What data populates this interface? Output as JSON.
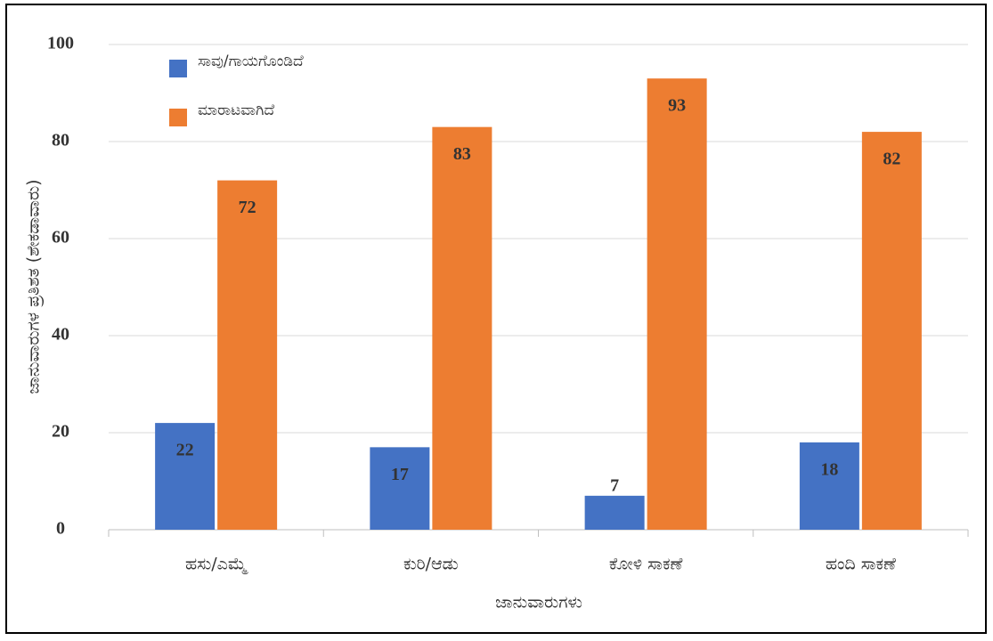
{
  "chart_data": {
    "type": "bar",
    "y_label": "ಜಾನುವಾರುಗಳ ಪ್ರತಿಶತ (ಶೇಕಡಾವಾರು)",
    "x_label": "ಜಾನುವಾರುಗಳು",
    "categories": [
      "ಹಸು/ಎಮ್ಮೆ",
      "ಕುರಿ/ಆಡು",
      "ಕೋಳಿ ಸಾಕಣೆ",
      "ಹಂದಿ ಸಾಕಣೆ"
    ],
    "series": [
      {
        "name": "ಸಾವು/ಗಾಯಗೊಂಡಿದೆ",
        "color": "#4472c4",
        "values": [
          22,
          17,
          7,
          18
        ]
      },
      {
        "name": "ಮಾರಾಟವಾಗಿದೆ",
        "color": "#ed7d31",
        "values": [
          72,
          83,
          93,
          82
        ]
      }
    ],
    "ylim": [
      0,
      100
    ],
    "yticks": [
      0,
      20,
      40,
      60,
      80,
      100
    ],
    "grid": true,
    "legend": "top-left"
  }
}
